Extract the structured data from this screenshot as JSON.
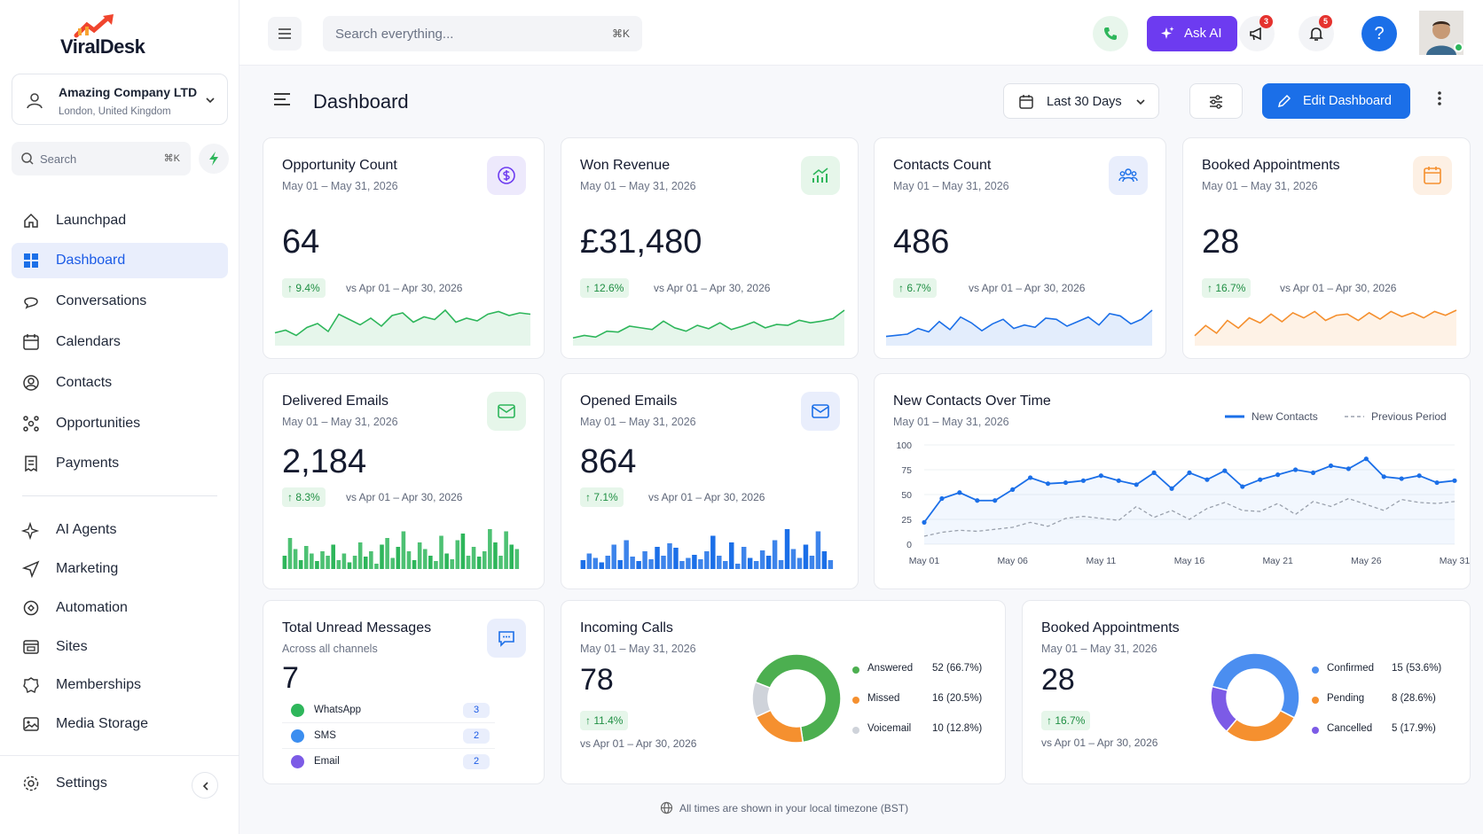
{
  "app": {
    "name": "ViralDesk"
  },
  "org": {
    "name": "Amazing Company LTD",
    "location": "London, United Kingdom"
  },
  "sidebar": {
    "search_placeholder": "Search",
    "search_shortcut": "⌘K",
    "items": [
      {
        "label": "Launchpad",
        "icon": "home-icon"
      },
      {
        "label": "Dashboard",
        "icon": "grid-icon",
        "active": true
      },
      {
        "label": "Conversations",
        "icon": "chat-icon"
      },
      {
        "label": "Calendars",
        "icon": "calendar-icon"
      },
      {
        "label": "Contacts",
        "icon": "user-circle-icon"
      },
      {
        "label": "Opportunities",
        "icon": "network-icon"
      },
      {
        "label": "Payments",
        "icon": "receipt-icon"
      },
      {
        "label": "AI Agents",
        "icon": "sparkle-icon"
      },
      {
        "label": "Marketing",
        "icon": "send-icon"
      },
      {
        "label": "Automation",
        "icon": "automation-icon"
      },
      {
        "label": "Sites",
        "icon": "browser-icon"
      },
      {
        "label": "Memberships",
        "icon": "badge-icon"
      },
      {
        "label": "Media Storage",
        "icon": "image-icon"
      }
    ],
    "settings_label": "Settings"
  },
  "topbar": {
    "search_placeholder": "Search everything...",
    "search_shortcut": "⌘K",
    "ask_ai_label": "Ask AI",
    "announcements_count": "3",
    "notifications_count": "5",
    "help_label": "?"
  },
  "page": {
    "title": "Dashboard",
    "date_range_label": "Last 30 Days",
    "edit_label": "Edit Dashboard"
  },
  "colors": {
    "brand_blue": "#1b6fe8",
    "ai_purple": "#6d3bf0",
    "green": "#2eb65b",
    "orange": "#f5902f",
    "grey": "#cfd3da",
    "violet": "#7c5be6"
  },
  "kpis": [
    {
      "title": "Opportunity Count",
      "range": "May 01 – May 31, 2026",
      "value": "64",
      "delta": "↑ 9.4%",
      "compare": "vs Apr 01 – Apr 30, 2026",
      "color": "#2eb65b"
    },
    {
      "title": "Won Revenue",
      "range": "May 01 – May 31, 2026",
      "value": "£31,480",
      "delta": "↑ 12.6%",
      "compare": "vs Apr 01 – Apr 30, 2026",
      "color": "#2eb65b"
    },
    {
      "title": "Contacts Count",
      "range": "May 01 – May 31, 2026",
      "value": "486",
      "delta": "↑ 6.7%",
      "compare": "vs Apr 01 – Apr 30, 2026",
      "color": "#1b6fe8"
    },
    {
      "title": "Booked Appointments",
      "range": "May 01 – May 31, 2026",
      "value": "28",
      "delta": "↑ 16.7%",
      "compare": "vs Apr 01 – Apr 30, 2026",
      "color": "#f5902f"
    }
  ],
  "emails": [
    {
      "title": "Delivered Emails",
      "range": "May 01 – May 31, 2026",
      "value": "2,184",
      "delta": "↑ 8.3%",
      "compare": "vs Apr 01 – Apr 30, 2026",
      "color": "#2eb65b"
    },
    {
      "title": "Opened Emails",
      "range": "May 01 – May 31, 2026",
      "value": "864",
      "delta": "↑ 7.1%",
      "compare": "vs Apr 01 – Apr 30, 2026",
      "color": "#1b6fe8"
    }
  ],
  "new_contacts": {
    "title": "New Contacts Over Time",
    "range": "May 01 – May 31, 2026",
    "legend_current": "New Contacts",
    "legend_previous": "Previous Period"
  },
  "unread": {
    "title": "Total Unread Messages",
    "subtitle": "Across all channels",
    "value": "7",
    "channels": [
      {
        "name": "WhatsApp",
        "count": "3",
        "color": "#2eb65b"
      },
      {
        "name": "SMS",
        "count": "2",
        "color": "#3b8ef0"
      },
      {
        "name": "Email",
        "count": "2",
        "color": "#7c5be6"
      }
    ]
  },
  "calls": {
    "title": "Incoming Calls",
    "range": "May 01 – May 31, 2026",
    "value": "78",
    "delta": "↑ 11.4%",
    "compare": "vs Apr 01 – Apr 30, 2026"
  },
  "appointments": {
    "title": "Booked Appointments",
    "range": "May 01 – May 31, 2026",
    "value": "28",
    "delta": "↑ 16.7%",
    "compare": "vs Apr 01 – Apr 30, 2026"
  },
  "footer": {
    "note": "All times are shown in your local timezone (BST)"
  },
  "chart_data": [
    {
      "type": "line",
      "title": "New Contacts Over Time",
      "x": [
        "May 01",
        "May 02",
        "May 03",
        "May 04",
        "May 05",
        "May 06",
        "May 07",
        "May 08",
        "May 09",
        "May 10",
        "May 11",
        "May 12",
        "May 13",
        "May 14",
        "May 15",
        "May 16",
        "May 17",
        "May 18",
        "May 19",
        "May 20",
        "May 21",
        "May 22",
        "May 23",
        "May 24",
        "May 25",
        "May 26",
        "May 27",
        "May 28",
        "May 29",
        "May 30",
        "May 31"
      ],
      "x_tick_labels": [
        "May 01",
        "May 06",
        "May 11",
        "May 16",
        "May 21",
        "May 26",
        "May 31"
      ],
      "y_ticks": [
        0,
        25,
        50,
        75,
        100
      ],
      "ylim": [
        0,
        100
      ],
      "grid": true,
      "legend": "top-right",
      "series": [
        {
          "name": "New Contacts",
          "style": "solid",
          "color": "#1b6fe8",
          "values": [
            22,
            46,
            52,
            44,
            44,
            55,
            67,
            61,
            62,
            64,
            69,
            64,
            60,
            72,
            56,
            72,
            65,
            74,
            58,
            65,
            70,
            75,
            72,
            79,
            76,
            86,
            68,
            66,
            69,
            62,
            64
          ]
        },
        {
          "name": "Previous Period",
          "style": "dashed",
          "color": "#9aa1ad",
          "values": [
            8,
            12,
            14,
            13,
            15,
            17,
            22,
            18,
            26,
            28,
            26,
            24,
            38,
            27,
            34,
            25,
            36,
            42,
            34,
            33,
            41,
            30,
            43,
            38,
            46,
            40,
            34,
            45,
            42,
            41,
            43
          ]
        }
      ]
    },
    {
      "type": "pie",
      "title": "Incoming Calls",
      "labels": [
        "Answered",
        "Missed",
        "Voicemail"
      ],
      "values": [
        52,
        16,
        10
      ],
      "value_labels": [
        "52 (66.7%)",
        "16 (20.5%)",
        "10 (12.8%)"
      ],
      "colors": [
        "#4caf50",
        "#f5902f",
        "#cfd3da"
      ]
    },
    {
      "type": "pie",
      "title": "Booked Appointments",
      "labels": [
        "Confirmed",
        "Pending",
        "Cancelled"
      ],
      "values": [
        15,
        8,
        5
      ],
      "value_labels": [
        "15 (53.6%)",
        "8 (28.6%)",
        "5 (17.9%)"
      ],
      "colors": [
        "#4b8ef0",
        "#f5902f",
        "#7c5be6"
      ]
    }
  ],
  "sparks": {
    "opportunity": [
      30,
      34,
      26,
      38,
      44,
      32,
      58,
      50,
      42,
      52,
      40,
      56,
      60,
      46,
      54,
      50,
      64,
      46,
      52,
      48,
      58,
      62,
      56,
      60,
      58
    ],
    "revenue": [
      20,
      26,
      22,
      36,
      34,
      48,
      44,
      40,
      60,
      44,
      36,
      50,
      42,
      56,
      40,
      48,
      58,
      44,
      52,
      50,
      62,
      56,
      60,
      66,
      86
    ],
    "contacts": [
      20,
      22,
      24,
      34,
      28,
      46,
      32,
      54,
      44,
      30,
      42,
      50,
      34,
      40,
      36,
      52,
      50,
      38,
      46,
      54,
      40,
      60,
      56,
      42,
      50,
      66
    ],
    "appointments": [
      20,
      36,
      24,
      44,
      32,
      48,
      40,
      54,
      42,
      56,
      48,
      58,
      44,
      52,
      54,
      44,
      56,
      46,
      58,
      50,
      56,
      48,
      58,
      52,
      60
    ],
    "delivered": [
      30,
      70,
      45,
      20,
      52,
      35,
      18,
      40,
      30,
      55,
      20,
      35,
      15,
      30,
      60,
      28,
      40,
      12,
      55,
      70,
      25,
      50,
      85,
      40,
      20,
      60,
      45,
      30,
      18,
      75,
      35,
      22,
      65,
      80,
      30,
      50,
      28,
      40,
      90,
      60,
      30,
      85,
      55,
      45
    ],
    "opened": [
      20,
      35,
      25,
      15,
      30,
      55,
      20,
      65,
      28,
      18,
      40,
      22,
      50,
      30,
      58,
      48,
      18,
      25,
      32,
      22,
      40,
      75,
      30,
      18,
      60,
      12,
      50,
      25,
      18,
      42,
      30,
      65,
      20,
      90,
      45,
      25,
      55,
      30,
      85,
      40,
      20
    ]
  }
}
